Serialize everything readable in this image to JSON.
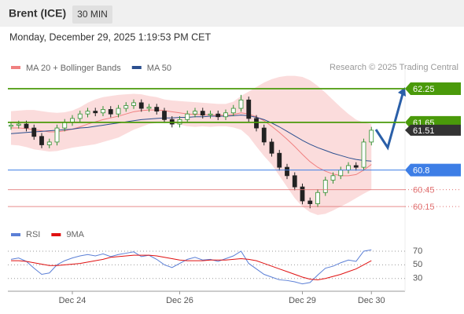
{
  "header": {
    "title": "Brent (ICE)",
    "interval": "30 MIN",
    "timestamp": "Monday, December 29, 2025 1:19:53 PM CET",
    "credit": "Research © 2025 Trading Central"
  },
  "chart_data": [
    {
      "type": "candlestick",
      "open": [
        61.58,
        61.6,
        61.62,
        61.55,
        61.4,
        61.25,
        61.3,
        61.55,
        61.65,
        61.72,
        61.8,
        61.85,
        61.82,
        61.88,
        61.8,
        61.9,
        61.95,
        62.0,
        61.9,
        61.92,
        61.85,
        61.7,
        61.62,
        61.7,
        61.8,
        61.85,
        61.78,
        61.8,
        61.75,
        61.82,
        61.9,
        62.05,
        61.72,
        61.55,
        61.3,
        61.1,
        60.85,
        60.7,
        60.5,
        60.25,
        60.2,
        60.4,
        60.62,
        60.7,
        60.8,
        60.88,
        60.85,
        61.3
      ],
      "high": [
        61.66,
        61.68,
        61.68,
        61.61,
        61.46,
        61.36,
        61.61,
        61.71,
        61.78,
        61.86,
        61.91,
        61.91,
        61.94,
        61.94,
        61.96,
        62.01,
        62.06,
        62.06,
        61.98,
        61.98,
        61.91,
        61.76,
        61.76,
        61.86,
        61.91,
        61.91,
        61.86,
        61.86,
        61.88,
        61.96,
        62.14,
        62.11,
        61.78,
        61.61,
        61.36,
        61.16,
        60.91,
        60.76,
        60.56,
        60.31,
        60.46,
        60.68,
        60.76,
        60.86,
        60.94,
        60.94,
        61.36,
        61.57
      ],
      "low": [
        61.52,
        61.54,
        61.49,
        61.34,
        61.19,
        61.19,
        61.24,
        61.49,
        61.59,
        61.66,
        61.74,
        61.76,
        61.76,
        61.74,
        61.74,
        61.84,
        61.89,
        61.84,
        61.84,
        61.79,
        61.64,
        61.56,
        61.56,
        61.64,
        61.74,
        61.72,
        61.72,
        61.69,
        61.69,
        61.76,
        61.84,
        61.66,
        61.49,
        61.24,
        61.04,
        60.79,
        60.64,
        60.44,
        60.19,
        60.12,
        60.14,
        60.34,
        60.56,
        60.64,
        60.74,
        60.79,
        60.79,
        61.24
      ],
      "close": [
        61.6,
        61.62,
        61.55,
        61.4,
        61.25,
        61.3,
        61.55,
        61.65,
        61.72,
        61.8,
        61.85,
        61.82,
        61.88,
        61.8,
        61.9,
        61.95,
        62.0,
        61.9,
        61.92,
        61.85,
        61.7,
        61.62,
        61.7,
        61.8,
        61.85,
        61.78,
        61.8,
        61.75,
        61.82,
        61.9,
        62.05,
        61.72,
        61.55,
        61.3,
        61.1,
        60.85,
        60.7,
        60.5,
        60.25,
        60.2,
        60.4,
        60.62,
        60.7,
        60.8,
        60.88,
        60.85,
        61.3,
        61.51
      ],
      "up_color": "#2f8f2f",
      "down_color": "#222222",
      "series": [
        {
          "name": "MA 20 + Bollinger Bands",
          "color": "#f08080",
          "values": [
            61.55,
            61.55,
            61.54,
            61.52,
            61.5,
            61.48,
            61.48,
            61.5,
            61.53,
            61.57,
            61.62,
            61.66,
            61.7,
            61.73,
            61.76,
            61.8,
            61.84,
            61.86,
            61.87,
            61.87,
            61.86,
            61.84,
            61.82,
            61.8,
            61.79,
            61.79,
            61.78,
            61.78,
            61.78,
            61.79,
            61.82,
            61.8,
            61.75,
            61.68,
            61.58,
            61.47,
            61.35,
            61.22,
            61.08,
            60.95,
            60.85,
            60.78,
            60.73,
            60.7,
            60.7,
            60.72,
            60.8,
            60.9
          ],
          "upper": [
            61.85,
            61.86,
            61.87,
            61.87,
            61.85,
            61.83,
            61.82,
            61.83,
            61.86,
            61.92,
            62.0,
            62.06,
            62.1,
            62.12,
            62.14,
            62.15,
            62.16,
            62.15,
            62.12,
            62.1,
            62.06,
            62.04,
            62.03,
            62.02,
            62.01,
            62.0,
            61.99,
            61.98,
            61.98,
            62.02,
            62.12,
            62.2,
            62.28,
            62.36,
            62.42,
            62.46,
            62.48,
            62.48,
            62.46,
            62.4,
            62.3,
            62.18,
            62.05,
            61.92,
            61.8,
            61.7,
            61.65,
            61.62
          ],
          "lower": [
            61.25,
            61.24,
            61.21,
            61.17,
            61.15,
            61.13,
            61.14,
            61.17,
            61.2,
            61.22,
            61.24,
            61.26,
            61.3,
            61.34,
            61.38,
            61.45,
            61.52,
            61.57,
            61.62,
            61.64,
            61.66,
            61.64,
            61.61,
            61.58,
            61.57,
            61.58,
            61.57,
            61.58,
            61.58,
            61.56,
            61.52,
            61.4,
            61.22,
            61.05,
            60.9,
            60.7,
            60.5,
            60.3,
            60.15,
            60.05,
            60.0,
            60.02,
            60.08,
            60.15,
            60.22,
            60.3,
            60.38,
            60.45
          ]
        },
        {
          "name": "MA 50",
          "color": "#2b4f8f",
          "values": [
            61.45,
            61.46,
            61.47,
            61.48,
            61.49,
            61.5,
            61.51,
            61.52,
            61.53,
            61.55,
            61.56,
            61.58,
            61.6,
            61.62,
            61.64,
            61.66,
            61.68,
            61.7,
            61.71,
            61.72,
            61.73,
            61.73,
            61.74,
            61.74,
            61.75,
            61.75,
            61.76,
            61.76,
            61.76,
            61.77,
            61.78,
            61.77,
            61.74,
            61.7,
            61.64,
            61.57,
            61.49,
            61.41,
            61.33,
            61.26,
            61.2,
            61.15,
            61.1,
            61.06,
            61.02,
            60.99,
            60.97,
            60.96
          ]
        }
      ],
      "levels": [
        62.25,
        61.65,
        60.8,
        60.45,
        60.15
      ],
      "level_colors": [
        "#4a9a0a",
        "#4a9a0a",
        "#3d7ee6",
        "#e07070",
        "#e07070"
      ],
      "level_boxes": [
        true,
        true,
        true,
        false,
        false
      ],
      "last_price": 61.51,
      "last_price_color": "#333333",
      "ylim": [
        59.9,
        62.6
      ]
    },
    {
      "type": "line",
      "categories": [
        null,
        null,
        null,
        null,
        null,
        null,
        null,
        null,
        "Dec 24",
        null,
        null,
        null,
        null,
        null,
        null,
        null,
        null,
        null,
        null,
        null,
        null,
        null,
        "Dec 26",
        null,
        null,
        null,
        null,
        null,
        null,
        null,
        null,
        null,
        null,
        null,
        null,
        null,
        null,
        null,
        "Dec 29",
        null,
        null,
        null,
        null,
        null,
        null,
        null,
        null,
        "Dec 30"
      ],
      "series": [
        {
          "name": "RSI",
          "color": "#5b7fd6",
          "values": [
            58,
            60,
            55,
            45,
            36,
            38,
            50,
            56,
            60,
            63,
            65,
            63,
            66,
            62,
            65,
            67,
            69,
            62,
            64,
            58,
            50,
            46,
            52,
            58,
            61,
            57,
            58,
            55,
            59,
            63,
            70,
            52,
            44,
            36,
            32,
            28,
            27,
            25,
            22,
            24,
            35,
            45,
            48,
            53,
            57,
            55,
            70,
            72
          ]
        },
        {
          "name": "9MA",
          "color": "#e01010",
          "values": [
            56,
            56,
            55,
            53,
            51,
            49,
            49,
            50,
            51,
            52,
            54,
            56,
            58,
            61,
            62,
            63,
            64,
            64,
            64,
            63,
            61,
            59,
            57,
            56,
            56,
            56,
            57,
            57,
            57,
            58,
            59,
            58,
            56,
            52,
            48,
            44,
            40,
            36,
            32,
            29,
            28,
            30,
            33,
            36,
            40,
            44,
            50,
            56
          ]
        }
      ],
      "ylim": [
        17,
        78
      ],
      "yticks": [
        30,
        50,
        70
      ],
      "grid": true
    }
  ]
}
